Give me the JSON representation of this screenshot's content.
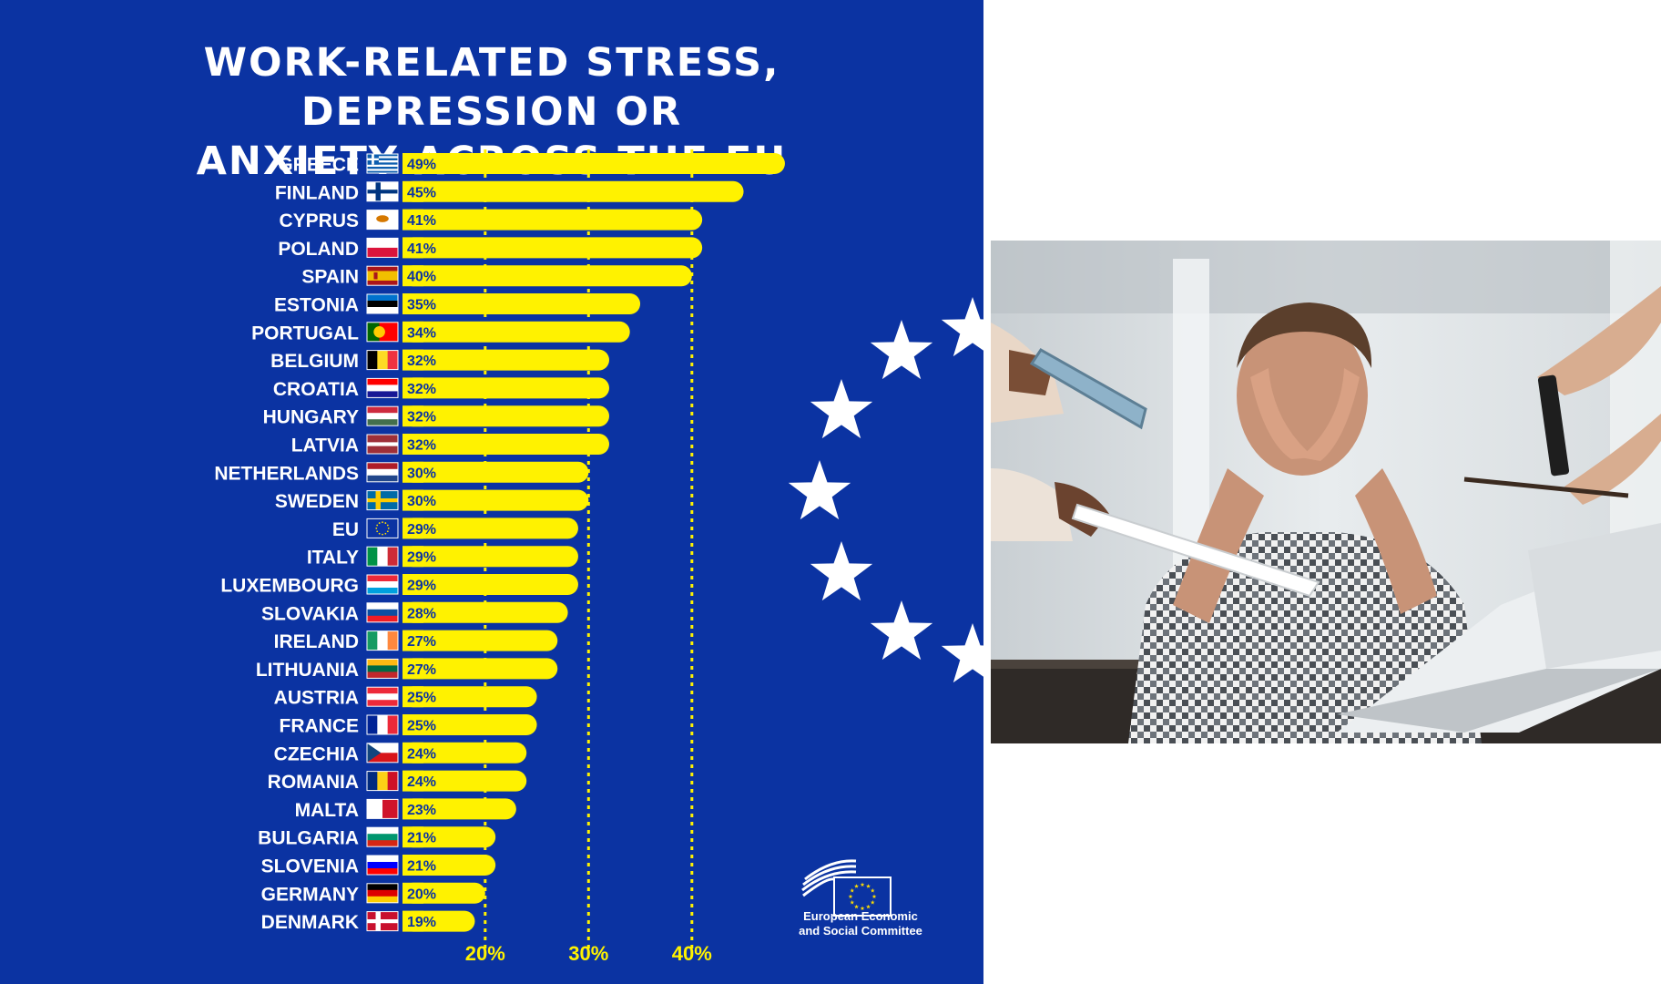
{
  "chart_data": {
    "type": "bar",
    "orientation": "horizontal",
    "title_lines": [
      "WORK-RELATED STRESS, DEPRESSION OR",
      "ANXIETY ACROSS THE EU"
    ],
    "categories": [
      "GREECE",
      "FINLAND",
      "CYPRUS",
      "POLAND",
      "SPAIN",
      "ESTONIA",
      "PORTUGAL",
      "BELGIUM",
      "CROATIA",
      "HUNGARY",
      "LATVIA",
      "NETHERLANDS",
      "SWEDEN",
      "EU",
      "ITALY",
      "LUXEMBOURG",
      "SLOVAKIA",
      "IRELAND",
      "LITHUANIA",
      "AUSTRIA",
      "FRANCE",
      "CZECHIA",
      "ROMANIA",
      "MALTA",
      "BULGARIA",
      "SLOVENIA",
      "GERMANY",
      "DENMARK"
    ],
    "values": [
      49,
      45,
      41,
      41,
      40,
      35,
      34,
      32,
      32,
      32,
      32,
      30,
      30,
      29,
      29,
      29,
      28,
      27,
      27,
      25,
      25,
      24,
      24,
      23,
      21,
      21,
      20,
      19
    ],
    "data_labels": [
      "49%",
      "45%",
      "41%",
      "41%",
      "40%",
      "35%",
      "34%",
      "32%",
      "32%",
      "32%",
      "32%",
      "30%",
      "30%",
      "29%",
      "29%",
      "29%",
      "28%",
      "27%",
      "27%",
      "25%",
      "25%",
      "24%",
      "24%",
      "23%",
      "21%",
      "21%",
      "20%",
      "19%"
    ],
    "reference_lines": [
      20,
      30,
      40
    ],
    "reference_labels": [
      "20%",
      "30%",
      "40%"
    ],
    "xlim": [
      12,
      60
    ],
    "unit": "%",
    "bar_color": "#fff200",
    "background_color": "#0b33a2",
    "label_color": "#ffffff",
    "flags": [
      {
        "type": "greece",
        "colors": [
          "#0d5eaf",
          "#ffffff"
        ]
      },
      {
        "type": "nordic",
        "colors": [
          "#ffffff",
          "#003580"
        ]
      },
      {
        "type": "plain",
        "colors": [
          "#ffffff",
          "#d57800"
        ]
      },
      {
        "type": "h",
        "colors": [
          "#ffffff",
          "#dc143c"
        ]
      },
      {
        "type": "spain",
        "colors": [
          "#aa151b",
          "#f1bf00"
        ]
      },
      {
        "type": "h",
        "colors": [
          "#0072ce",
          "#000000",
          "#ffffff"
        ]
      },
      {
        "type": "portugal",
        "colors": [
          "#006600",
          "#ff0000",
          "#ffcc00"
        ]
      },
      {
        "type": "v",
        "colors": [
          "#000000",
          "#fdda24",
          "#ef3340"
        ]
      },
      {
        "type": "h",
        "colors": [
          "#ff0000",
          "#ffffff",
          "#171796"
        ]
      },
      {
        "type": "h",
        "colors": [
          "#cd2a3e",
          "#ffffff",
          "#436f4d"
        ]
      },
      {
        "type": "latvia",
        "colors": [
          "#9e3039",
          "#ffffff"
        ]
      },
      {
        "type": "h",
        "colors": [
          "#ae1c28",
          "#ffffff",
          "#21468b"
        ]
      },
      {
        "type": "nordic",
        "colors": [
          "#006aa7",
          "#fecc00"
        ]
      },
      {
        "type": "eu",
        "colors": [
          "#0b33a2",
          "#ffdd00"
        ]
      },
      {
        "type": "v",
        "colors": [
          "#009246",
          "#ffffff",
          "#ce2b37"
        ]
      },
      {
        "type": "h",
        "colors": [
          "#ed2939",
          "#ffffff",
          "#00a1de"
        ]
      },
      {
        "type": "h",
        "colors": [
          "#ffffff",
          "#0b4ea2",
          "#ee1c25"
        ]
      },
      {
        "type": "v",
        "colors": [
          "#169b62",
          "#ffffff",
          "#ff883e"
        ]
      },
      {
        "type": "h",
        "colors": [
          "#fdb913",
          "#006a44",
          "#c1272d"
        ]
      },
      {
        "type": "h",
        "colors": [
          "#ed2939",
          "#ffffff",
          "#ed2939"
        ]
      },
      {
        "type": "v",
        "colors": [
          "#002395",
          "#ffffff",
          "#ed2939"
        ]
      },
      {
        "type": "czech",
        "colors": [
          "#ffffff",
          "#d7141a",
          "#11457e"
        ]
      },
      {
        "type": "v",
        "colors": [
          "#002b7f",
          "#fcd116",
          "#ce1126"
        ]
      },
      {
        "type": "v",
        "colors": [
          "#ffffff",
          "#cf142b"
        ]
      },
      {
        "type": "h",
        "colors": [
          "#ffffff",
          "#00966e",
          "#d62612"
        ]
      },
      {
        "type": "h",
        "colors": [
          "#ffffff",
          "#0000ff",
          "#ff0000"
        ]
      },
      {
        "type": "h",
        "colors": [
          "#000000",
          "#dd0000",
          "#ffce00"
        ]
      },
      {
        "type": "nordic",
        "colors": [
          "#c8102e",
          "#ffffff"
        ]
      }
    ]
  },
  "logo": {
    "text_lines": [
      "European Economic",
      "and Social Committee"
    ]
  },
  "decoration": {
    "star_color": "#ffffff",
    "photo_description_icons": [
      "stressed-man-photo"
    ]
  }
}
